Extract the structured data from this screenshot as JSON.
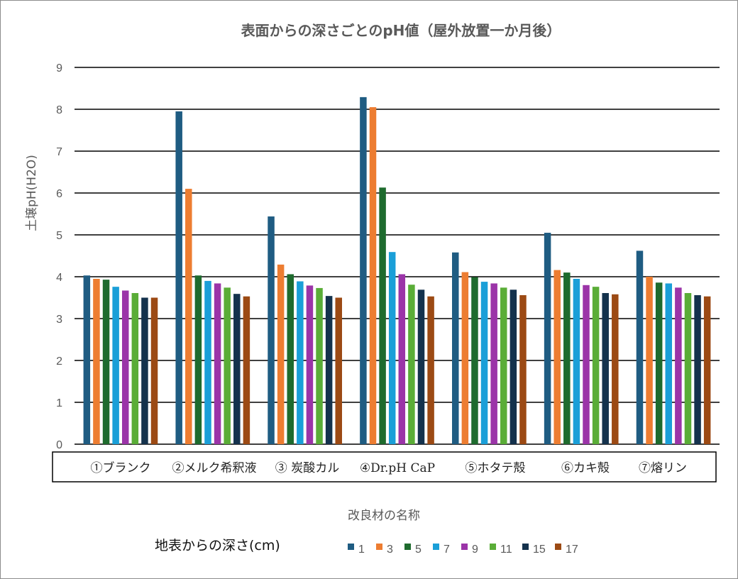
{
  "chart_data": {
    "type": "bar",
    "title": "表面からの深さごとのpH値（屋外放置一か月後）",
    "ylabel": "土壌pH(H2O)",
    "xlabel": "改良材の名称",
    "ylim": [
      0,
      9
    ],
    "yticks": [
      "0",
      "1",
      "2",
      "3",
      "4",
      "5",
      "6",
      "7",
      "8",
      "9"
    ],
    "grid": true,
    "legend_title": "地表からの深さ(cm)",
    "legend_position": "bottom",
    "categories": [
      "①ブランク",
      "②メルク希釈液",
      "③ 炭酸カル",
      "④Dr.pH CaP",
      "⑤ホタテ殻",
      "⑥カキ殻",
      "⑦熔リン"
    ],
    "series": [
      {
        "name": "1",
        "color": "#1f5c82",
        "values": [
          4.03,
          7.95,
          5.44,
          8.29,
          4.58,
          5.05,
          4.62
        ]
      },
      {
        "name": "3",
        "color": "#ed7d31",
        "values": [
          3.95,
          6.1,
          4.29,
          8.05,
          4.11,
          4.16,
          4.0
        ]
      },
      {
        "name": "5",
        "color": "#1e6b2e",
        "values": [
          3.93,
          4.03,
          4.06,
          6.13,
          3.99,
          4.1,
          3.86
        ]
      },
      {
        "name": "7",
        "color": "#1a9fd8",
        "values": [
          3.76,
          3.9,
          3.89,
          4.59,
          3.88,
          3.95,
          3.84
        ]
      },
      {
        "name": "9",
        "color": "#9b34a8",
        "values": [
          3.67,
          3.84,
          3.79,
          4.06,
          3.84,
          3.8,
          3.74
        ]
      },
      {
        "name": "11",
        "color": "#5aad37",
        "values": [
          3.61,
          3.74,
          3.73,
          3.81,
          3.74,
          3.76,
          3.61
        ]
      },
      {
        "name": "15",
        "color": "#14324d",
        "values": [
          3.5,
          3.59,
          3.54,
          3.69,
          3.69,
          3.61,
          3.56
        ]
      },
      {
        "name": "17",
        "color": "#9c4a14",
        "values": [
          3.5,
          3.53,
          3.5,
          3.53,
          3.56,
          3.58,
          3.53
        ]
      }
    ]
  }
}
